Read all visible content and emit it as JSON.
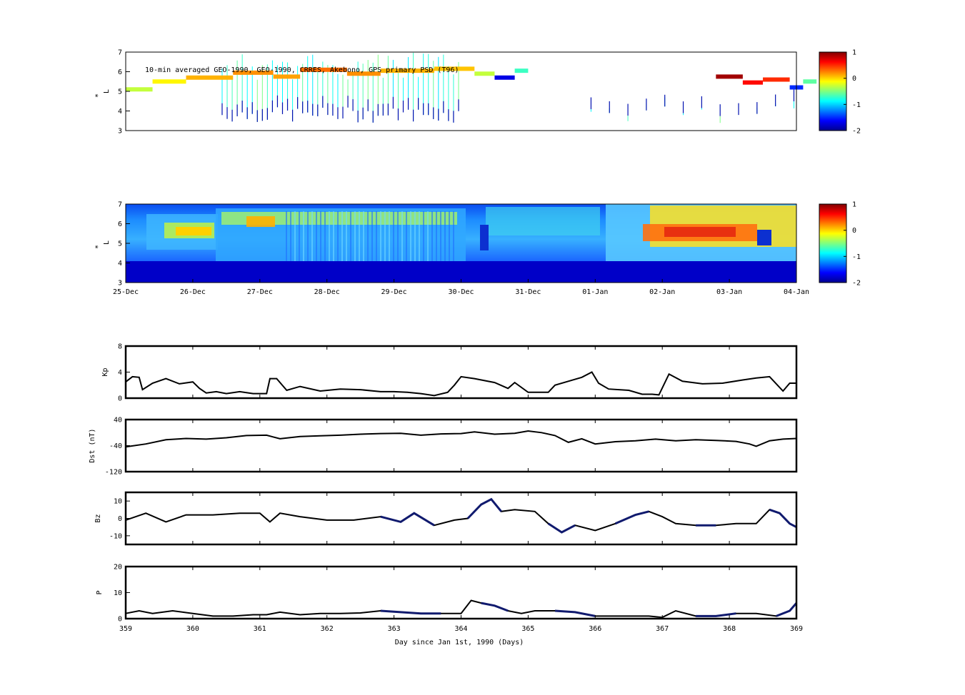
{
  "chart_data": [
    {
      "type": "scatter",
      "name_note": "",
      "title": "10-min averaged GEO-1990, GEO-1990, CRRES, Akebono, GPS  primary PSD (T96)",
      "ylabel": "L*",
      "ylim": [
        3,
        7
      ],
      "yticks": [
        "3",
        "4",
        "5",
        "6",
        "7"
      ],
      "xlim": [
        359,
        369
      ],
      "colorbar": {
        "ticks": [
          "1",
          "0",
          "-1",
          "-2"
        ],
        "clim": [
          -2,
          1
        ],
        "colormap": "jet"
      },
      "segments": [
        {
          "x0": 359.0,
          "x1": 359.4,
          "L": 5.1,
          "v": -0.3
        },
        {
          "x0": 359.4,
          "x1": 359.9,
          "L": 5.5,
          "v": -0.1
        },
        {
          "x0": 359.9,
          "x1": 360.6,
          "L": 5.7,
          "v": 0.1
        },
        {
          "x0": 360.6,
          "x1": 361.2,
          "L": 5.95,
          "v": 0.2
        },
        {
          "x0": 361.2,
          "x1": 361.6,
          "L": 5.75,
          "v": 0.15
        },
        {
          "x0": 361.6,
          "x1": 362.3,
          "L": 6.1,
          "v": 0.3
        },
        {
          "x0": 362.3,
          "x1": 362.8,
          "L": 5.9,
          "v": 0.2
        },
        {
          "x0": 362.8,
          "x1": 363.6,
          "L": 6.05,
          "v": 0.1
        },
        {
          "x0": 363.6,
          "x1": 364.2,
          "L": 6.15,
          "v": 0.05
        },
        {
          "x0": 364.2,
          "x1": 364.5,
          "L": 5.9,
          "v": -0.3
        },
        {
          "x0": 364.5,
          "x1": 364.8,
          "L": 5.7,
          "v": -1.7
        },
        {
          "x0": 364.8,
          "x1": 365.0,
          "L": 6.05,
          "v": -0.7
        },
        {
          "x0": 367.8,
          "x1": 368.2,
          "L": 5.75,
          "v": 0.9
        },
        {
          "x0": 368.2,
          "x1": 368.5,
          "L": 5.45,
          "v": 0.6
        },
        {
          "x0": 368.5,
          "x1": 368.9,
          "L": 5.6,
          "v": 0.5
        },
        {
          "x0": 368.9,
          "x1": 369.1,
          "L": 5.2,
          "v": -1.5
        },
        {
          "x0": 369.1,
          "x1": 369.3,
          "L": 5.5,
          "v": -0.6
        }
      ],
      "spikes_first_half": {
        "x_start": 360.4,
        "x_end": 364.0,
        "count": 48,
        "L_low": 3.4,
        "L_high": 7.0
      },
      "spikes_second_half": {
        "x_start": 365.8,
        "x_end": 369.1,
        "count": 12,
        "L_low": 3.7,
        "L_high": 4.8
      }
    },
    {
      "type": "heatmap",
      "ylabel": "L*",
      "ylim": [
        3,
        7
      ],
      "yticks": [
        "3",
        "4",
        "5",
        "6",
        "7"
      ],
      "xticks": [
        "25-Dec",
        "26-Dec",
        "27-Dec",
        "28-Dec",
        "29-Dec",
        "30-Dec",
        "31-Dec",
        "01-Jan",
        "02-Jan",
        "03-Jan",
        "04-Jan"
      ],
      "xlim": [
        359,
        369
      ],
      "colorbar": {
        "ticks": [
          "1",
          "0",
          "-1",
          "-2"
        ],
        "clim": [
          -2,
          1
        ],
        "colormap": "jet"
      }
    },
    {
      "type": "line",
      "ylabel": "Kp",
      "ylim": [
        0,
        8
      ],
      "yticks": [
        "0",
        "4",
        "8"
      ],
      "xlim": [
        359,
        369
      ],
      "x": [
        359.0,
        359.1,
        359.2,
        359.25,
        359.4,
        359.6,
        359.8,
        360.0,
        360.1,
        360.2,
        360.35,
        360.5,
        360.7,
        360.9,
        361.1,
        361.15,
        361.25,
        361.4,
        361.6,
        361.9,
        362.2,
        362.5,
        362.8,
        363.0,
        363.2,
        363.4,
        363.6,
        363.8,
        363.9,
        364.0,
        364.2,
        364.5,
        364.7,
        364.8,
        365.0,
        365.3,
        365.4,
        365.6,
        365.8,
        365.95,
        366.05,
        366.2,
        366.5,
        366.7,
        366.85,
        366.95,
        367.1,
        367.3,
        367.6,
        367.9,
        368.2,
        368.4,
        368.6,
        368.8,
        368.9,
        369.0
      ],
      "y": [
        2.5,
        3.3,
        3.2,
        1.3,
        2.3,
        3,
        2.2,
        2.5,
        1.5,
        0.8,
        1,
        0.7,
        1,
        0.7,
        0.7,
        3,
        3,
        1.2,
        1.8,
        1.1,
        1.4,
        1.3,
        1,
        1,
        0.9,
        0.7,
        0.4,
        0.9,
        2,
        3.3,
        3,
        2.4,
        1.5,
        2.4,
        0.9,
        0.9,
        2,
        2.6,
        3.2,
        4,
        2.3,
        1.4,
        1.2,
        0.6,
        0.6,
        0.5,
        3.7,
        2.6,
        2.2,
        2.3,
        2.8,
        3.1,
        3.3,
        1.1,
        2.3,
        2.3
      ]
    },
    {
      "type": "line",
      "ylabel": "Dst (nT)",
      "ylim": [
        -120,
        40
      ],
      "yticks": [
        "-120",
        "-40",
        "40"
      ],
      "xlim": [
        359,
        369
      ],
      "x": [
        359.0,
        359.3,
        359.6,
        359.9,
        360.2,
        360.5,
        360.8,
        361.1,
        361.3,
        361.6,
        361.9,
        362.2,
        362.5,
        362.8,
        363.1,
        363.4,
        363.7,
        364.0,
        364.2,
        364.5,
        364.8,
        365.0,
        365.2,
        365.4,
        365.6,
        365.8,
        366.0,
        366.3,
        366.6,
        366.9,
        367.2,
        367.5,
        367.8,
        368.1,
        368.3,
        368.4,
        368.6,
        368.8,
        369.0
      ],
      "y": [
        -44,
        -35,
        -22,
        -18,
        -20,
        -16,
        -9,
        -8,
        -19,
        -12,
        -10,
        -8,
        -5,
        -3,
        -2,
        -8,
        -4,
        -3,
        2,
        -5,
        -2,
        5,
        0,
        -9,
        -30,
        -19,
        -35,
        -28,
        -25,
        -20,
        -25,
        -22,
        -24,
        -27,
        -35,
        -42,
        -25,
        -20,
        -18
      ]
    },
    {
      "type": "line",
      "ylabel": "Bz",
      "ylim": [
        -15,
        15
      ],
      "yticks": [
        "-10",
        "0",
        "10"
      ],
      "xlim": [
        359,
        369
      ],
      "x": [
        359.0,
        359.3,
        359.6,
        359.9,
        360.3,
        360.7,
        361.0,
        361.15,
        361.3,
        361.6,
        362.0,
        362.4,
        362.8,
        363.1,
        363.3,
        363.6,
        363.9,
        364.1,
        364.3,
        364.45,
        364.6,
        364.8,
        365.1,
        365.3,
        365.5,
        365.7,
        366.0,
        366.3,
        366.6,
        366.8,
        367.0,
        367.2,
        367.5,
        367.8,
        368.1,
        368.4,
        368.6,
        368.75,
        368.9,
        369.0
      ],
      "y": [
        -1,
        3,
        -2,
        2,
        2,
        3,
        3,
        -2,
        3,
        1,
        -1,
        -1,
        1,
        -2,
        3,
        -4,
        -1,
        0,
        8,
        11,
        4,
        5,
        4,
        -3,
        -8,
        -4,
        -7,
        -3,
        2,
        4,
        1,
        -3,
        -4,
        -4,
        -3,
        -3,
        5,
        3,
        -3,
        -5
      ],
      "highlight": [
        [
          362.8,
          363.7
        ],
        [
          364.1,
          364.6
        ],
        [
          365.3,
          365.8
        ],
        [
          366.2,
          366.8
        ],
        [
          367.5,
          368.0
        ],
        [
          368.5,
          369.0
        ]
      ],
      "highlight_color": "#101a6e"
    },
    {
      "type": "line",
      "ylabel": "P",
      "ylim": [
        0,
        20
      ],
      "yticks": [
        "0",
        "10",
        "20"
      ],
      "xlabel": "Day since Jan 1st, 1990 (Days)",
      "xticks": [
        "359",
        "360",
        "361",
        "362",
        "363",
        "364",
        "365",
        "366",
        "367",
        "368",
        "369"
      ],
      "xlim": [
        359,
        369
      ],
      "x": [
        359.0,
        359.2,
        359.4,
        359.7,
        360.0,
        360.3,
        360.6,
        360.9,
        361.1,
        361.3,
        361.6,
        361.9,
        362.2,
        362.5,
        362.8,
        363.1,
        363.4,
        363.7,
        364.0,
        364.15,
        364.3,
        364.5,
        364.7,
        364.9,
        365.1,
        365.4,
        365.7,
        366.0,
        366.3,
        366.6,
        366.8,
        367.0,
        367.2,
        367.5,
        367.8,
        368.1,
        368.4,
        368.7,
        368.9,
        369.0
      ],
      "y": [
        2,
        3,
        2,
        3,
        2,
        1,
        1,
        1.5,
        1.5,
        2.5,
        1.5,
        2,
        2,
        2.2,
        3,
        2.5,
        2,
        2,
        2,
        7,
        6,
        5,
        3,
        2,
        3,
        3,
        2.5,
        1,
        1,
        1,
        1,
        0.5,
        3,
        1,
        1,
        2,
        2,
        1,
        3,
        6
      ],
      "highlight": [
        [
          362.6,
          363.7
        ],
        [
          364.2,
          364.8
        ],
        [
          365.2,
          366.0
        ],
        [
          367.5,
          368.1
        ],
        [
          368.6,
          369.0
        ]
      ],
      "highlight_color": "#101a6e"
    }
  ]
}
